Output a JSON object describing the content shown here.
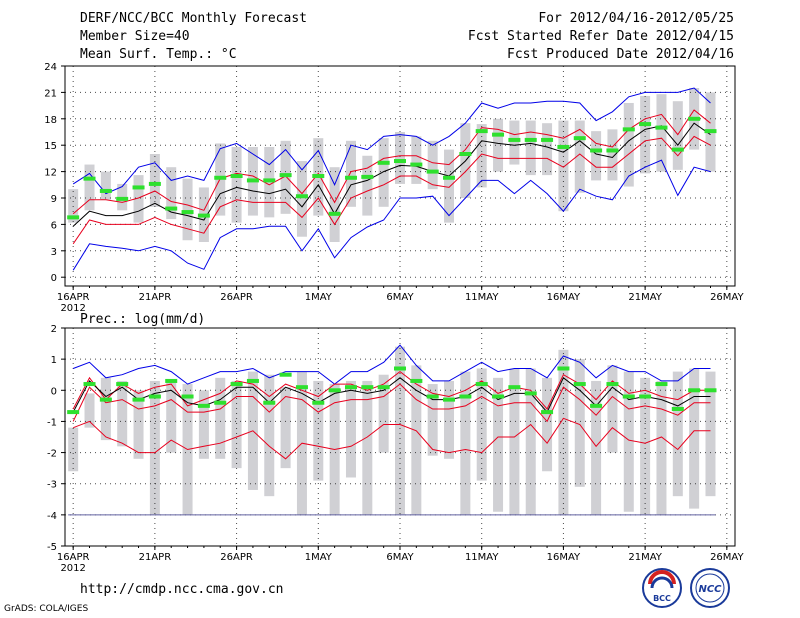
{
  "header": {
    "title": "DERF/NCC/BCC Monthly Forecast",
    "member_size": "Member Size=40",
    "variable": "Mean Surf. Temp.: °C",
    "forecast_period": "For 2012/04/16-2012/05/25",
    "started_date": "Fcst Started Refer Date 2012/04/15",
    "produced_date": "Fcst Produced Date 2012/04/16"
  },
  "footer": {
    "url": "http://cmdp.ncc.cma.gov.cn",
    "credit": "GrADS: COLA/IGES",
    "logo_bcc": "BCC",
    "logo_ncc": "NCC"
  },
  "colors": {
    "box": "#d0d0d4",
    "obs": "#2ee02e",
    "mean": "#000000",
    "inner": "#e8001e",
    "outer": "#0000e8",
    "grid": "#000000",
    "floor": "#6060a0"
  },
  "chart_data": [
    {
      "type": "line",
      "title": "Mean Surf. Temp.: °C",
      "xlabel": "",
      "ylabel": "",
      "x": [
        "16APR",
        "17APR",
        "18APR",
        "19APR",
        "20APR",
        "21APR",
        "22APR",
        "23APR",
        "24APR",
        "25APR",
        "26APR",
        "27APR",
        "28APR",
        "29APR",
        "30APR",
        "1MAY",
        "2MAY",
        "3MAY",
        "4MAY",
        "5MAY",
        "6MAY",
        "7MAY",
        "8MAY",
        "9MAY",
        "10MAY",
        "11MAY",
        "12MAY",
        "13MAY",
        "14MAY",
        "15MAY",
        "16MAY",
        "17MAY",
        "18MAY",
        "19MAY",
        "20MAY",
        "21MAY",
        "22MAY",
        "23MAY",
        "24MAY",
        "25MAY"
      ],
      "x_tick_labels": [
        "16APR",
        "21APR",
        "26APR",
        "1MAY",
        "6MAY",
        "11MAY",
        "16MAY",
        "21MAY",
        "26MAY"
      ],
      "x_year_label": "2012",
      "ylim": [
        -1,
        24
      ],
      "yticks": [
        0,
        3,
        6,
        9,
        12,
        15,
        18,
        21,
        24
      ],
      "grid": true,
      "series": [
        {
          "name": "ensemble max",
          "values": [
            0.8,
            3.8,
            3.5,
            3.3,
            3.0,
            3.5,
            3.0,
            1.6,
            0.9,
            4.5,
            5.5,
            5.5,
            5.8,
            5.8,
            3.0,
            5.5,
            2.2,
            4.5,
            5.7,
            6.5,
            9.0,
            9.0,
            9.2,
            7.0,
            9.0,
            11.0,
            11.0,
            9.5,
            11.0,
            9.5,
            7.5,
            10.0,
            9.2,
            8.8,
            11.5,
            12.5,
            13.3,
            9.3,
            12.5,
            12.0
          ]
        },
        {
          "name": "upper envelope",
          "values": [
            10.6,
            11.8,
            9.5,
            10.3,
            12.5,
            13.0,
            11.0,
            11.5,
            11.0,
            14.6,
            15.2,
            14.0,
            12.8,
            14.5,
            12.2,
            14.4,
            10.5,
            15.0,
            14.5,
            16.0,
            16.2,
            16.0,
            15.0,
            16.0,
            17.5,
            19.8,
            19.2,
            19.8,
            19.8,
            20.0,
            20.0,
            19.8,
            17.8,
            18.8,
            20.5,
            21.0,
            21.0,
            21.0,
            21.5,
            19.8
          ]
        },
        {
          "name": "upper interval",
          "values": [
            7.2,
            8.8,
            8.8,
            8.5,
            9.0,
            9.8,
            8.6,
            8.2,
            7.6,
            11.2,
            11.8,
            11.5,
            10.5,
            11.5,
            9.5,
            11.8,
            8.5,
            12.0,
            12.4,
            13.5,
            13.8,
            13.8,
            13.0,
            12.8,
            14.5,
            17.0,
            16.8,
            16.2,
            16.5,
            16.2,
            15.8,
            16.8,
            15.2,
            14.8,
            16.8,
            18.0,
            18.5,
            16.2,
            19.0,
            17.5
          ]
        },
        {
          "name": "ensemble mean",
          "values": [
            5.8,
            7.5,
            7.0,
            7.0,
            7.5,
            8.4,
            7.4,
            7.0,
            6.5,
            9.5,
            10.2,
            9.8,
            9.5,
            10.0,
            8.0,
            10.5,
            7.2,
            10.5,
            11.0,
            12.0,
            12.7,
            12.6,
            12.0,
            11.5,
            13.2,
            15.5,
            15.2,
            15.0,
            15.2,
            14.8,
            14.2,
            15.5,
            14.0,
            13.6,
            15.5,
            16.8,
            17.2,
            15.0,
            17.5,
            16.2
          ]
        },
        {
          "name": "lower interval",
          "values": [
            3.8,
            6.5,
            6.0,
            6.0,
            6.0,
            6.8,
            6.0,
            5.5,
            5.0,
            8.0,
            8.8,
            8.5,
            8.5,
            8.5,
            6.8,
            9.0,
            6.0,
            9.0,
            9.8,
            10.5,
            11.5,
            11.5,
            10.5,
            10.2,
            12.0,
            14.0,
            13.5,
            13.5,
            13.5,
            13.5,
            12.5,
            14.0,
            12.5,
            12.5,
            14.0,
            15.5,
            15.8,
            13.8,
            16.0,
            15.0
          ]
        },
        {
          "name": "observed",
          "values": [
            6.8,
            11.2,
            9.8,
            8.9,
            10.2,
            10.6,
            7.8,
            7.4,
            7.0,
            11.3,
            11.5,
            11.0,
            11.0,
            11.6,
            9.2,
            11.5,
            7.2,
            11.3,
            11.4,
            13.0,
            13.2,
            12.8,
            12.0,
            11.3,
            14.0,
            16.6,
            16.2,
            15.6,
            15.6,
            15.6,
            14.8,
            15.8,
            14.4,
            14.4,
            16.8,
            17.4,
            17.0,
            14.5,
            18.0,
            16.6
          ]
        }
      ],
      "box_ranges": [
        [
          6.2,
          10.0
        ],
        [
          7.6,
          12.8
        ],
        [
          8.8,
          12.0
        ],
        [
          7.6,
          10.6
        ],
        [
          6.2,
          11.6
        ],
        [
          8.0,
          14.0
        ],
        [
          6.6,
          12.5
        ],
        [
          4.2,
          11.2
        ],
        [
          4.0,
          10.2
        ],
        [
          7.0,
          15.2
        ],
        [
          6.2,
          14.8
        ],
        [
          7.0,
          14.8
        ],
        [
          6.8,
          14.8
        ],
        [
          7.2,
          15.5
        ],
        [
          4.6,
          13.2
        ],
        [
          7.0,
          15.8
        ],
        [
          4.0,
          12.5
        ],
        [
          8.0,
          15.5
        ],
        [
          7.0,
          13.8
        ],
        [
          8.0,
          15.8
        ],
        [
          10.6,
          16.5
        ],
        [
          10.6,
          16.0
        ],
        [
          10.0,
          15.5
        ],
        [
          6.2,
          14.5
        ],
        [
          9.0,
          17.5
        ],
        [
          10.2,
          17.4
        ],
        [
          12.0,
          18.0
        ],
        [
          12.8,
          17.8
        ],
        [
          11.6,
          17.8
        ],
        [
          11.6,
          17.5
        ],
        [
          7.5,
          17.8
        ],
        [
          9.6,
          17.8
        ],
        [
          11.0,
          16.6
        ],
        [
          11.0,
          16.8
        ],
        [
          10.3,
          19.8
        ],
        [
          11.8,
          20.6
        ],
        [
          12.0,
          20.8
        ],
        [
          12.2,
          20.0
        ],
        [
          14.5,
          21.5
        ],
        [
          12.0,
          21.0
        ]
      ]
    },
    {
      "type": "line",
      "title": "Prec.: log(mm/d)",
      "xlabel": "",
      "ylabel": "",
      "x": [
        "16APR",
        "17APR",
        "18APR",
        "19APR",
        "20APR",
        "21APR",
        "22APR",
        "23APR",
        "24APR",
        "25APR",
        "26APR",
        "27APR",
        "28APR",
        "29APR",
        "30APR",
        "1MAY",
        "2MAY",
        "3MAY",
        "4MAY",
        "5MAY",
        "6MAY",
        "7MAY",
        "8MAY",
        "9MAY",
        "10MAY",
        "11MAY",
        "12MAY",
        "13MAY",
        "14MAY",
        "15MAY",
        "16MAY",
        "17MAY",
        "18MAY",
        "19MAY",
        "20MAY",
        "21MAY",
        "22MAY",
        "23MAY",
        "24MAY",
        "25MAY"
      ],
      "x_tick_labels": [
        "16APR",
        "21APR",
        "26APR",
        "1MAY",
        "6MAY",
        "11MAY",
        "16MAY",
        "21MAY",
        "26MAY"
      ],
      "x_year_label": "2012",
      "ylim": [
        -5,
        2
      ],
      "yticks": [
        -5,
        -4,
        -3,
        -2,
        -1,
        0,
        1,
        2
      ],
      "grid": true,
      "floor_line": -4,
      "series": [
        {
          "name": "upper envelope",
          "values": [
            0.7,
            0.9,
            0.4,
            0.5,
            0.7,
            0.8,
            0.6,
            0.2,
            0.4,
            0.6,
            0.6,
            0.7,
            0.4,
            0.6,
            0.6,
            0.6,
            0.2,
            0.6,
            0.6,
            0.9,
            1.45,
            0.8,
            0.3,
            0.3,
            0.6,
            0.9,
            0.6,
            0.7,
            0.7,
            0.4,
            1.1,
            0.9,
            0.4,
            0.8,
            0.6,
            0.6,
            0.3,
            0.3,
            0.7,
            0.7
          ]
        },
        {
          "name": "upper interval",
          "values": [
            -0.6,
            0.4,
            -0.3,
            0.2,
            -0.1,
            0.1,
            0.2,
            -0.5,
            -0.3,
            -0.1,
            0.3,
            0.2,
            -0.2,
            0.2,
            0.0,
            -0.2,
            0.2,
            0.2,
            0.0,
            0.2,
            0.6,
            0.2,
            -0.1,
            -0.2,
            0.0,
            0.3,
            -0.1,
            0.1,
            0.0,
            -0.6,
            0.5,
            0.2,
            -0.3,
            0.3,
            -0.1,
            0.0,
            -0.2,
            -0.3,
            0.0,
            0.0
          ]
        },
        {
          "name": "ensemble mean",
          "values": [
            -0.7,
            0.3,
            -0.2,
            0.1,
            -0.3,
            -0.1,
            0.0,
            -0.4,
            -0.5,
            -0.3,
            0.1,
            0.1,
            -0.4,
            0.1,
            -0.1,
            -0.4,
            -0.1,
            0.0,
            -0.1,
            0.0,
            0.4,
            0.0,
            -0.3,
            -0.3,
            -0.2,
            0.1,
            -0.3,
            -0.1,
            -0.1,
            -0.7,
            0.4,
            0.0,
            -0.5,
            0.1,
            -0.3,
            -0.2,
            -0.3,
            -0.5,
            -0.2,
            -0.2
          ]
        },
        {
          "name": "lower interval",
          "values": [
            -1.0,
            0.1,
            -0.4,
            -0.3,
            -0.6,
            -0.5,
            -0.3,
            -0.7,
            -0.7,
            -0.6,
            -0.2,
            -0.2,
            -0.7,
            -0.2,
            -0.3,
            -0.7,
            -0.4,
            -0.3,
            -0.3,
            -0.2,
            0.2,
            -0.3,
            -0.6,
            -0.6,
            -0.5,
            -0.2,
            -0.5,
            -0.4,
            -0.4,
            -1.0,
            0.1,
            -0.3,
            -0.8,
            -0.2,
            -0.6,
            -0.5,
            -0.6,
            -0.8,
            -0.4,
            -0.4
          ]
        },
        {
          "name": "lower envelope",
          "values": [
            -1.2,
            -1.0,
            -1.5,
            -1.7,
            -2.0,
            -2.0,
            -1.6,
            -1.9,
            -1.8,
            -1.7,
            -1.5,
            -1.3,
            -1.8,
            -2.2,
            -1.7,
            -1.8,
            -1.9,
            -1.8,
            -1.5,
            -1.1,
            -1.1,
            -1.3,
            -1.9,
            -2.0,
            -1.9,
            -2.0,
            -1.5,
            -1.5,
            -1.1,
            -1.7,
            -0.9,
            -1.1,
            -1.8,
            -1.2,
            -1.6,
            -1.7,
            -1.5,
            -1.9,
            -1.3,
            -1.3
          ]
        },
        {
          "name": "observed",
          "values": [
            -0.7,
            0.2,
            -0.3,
            0.2,
            -0.3,
            -0.2,
            0.3,
            -0.2,
            -0.5,
            -0.4,
            0.2,
            0.3,
            -0.4,
            0.5,
            0.1,
            -0.4,
            0.0,
            0.1,
            0.1,
            0.1,
            0.7,
            0.3,
            -0.2,
            -0.3,
            -0.2,
            0.2,
            -0.2,
            0.1,
            -0.1,
            -0.7,
            0.7,
            0.2,
            -0.5,
            0.2,
            -0.2,
            -0.2,
            0.2,
            -0.6,
            0.0,
            0.0
          ]
        }
      ],
      "box_ranges": [
        [
          -2.6,
          -1.2
        ],
        [
          -1.2,
          -0.1
        ],
        [
          -1.6,
          0.4
        ],
        [
          -1.8,
          0.3
        ],
        [
          -2.2,
          0.0
        ],
        [
          -4.0,
          0.3
        ],
        [
          -2.0,
          0.3
        ],
        [
          -4.0,
          0.2
        ],
        [
          -2.2,
          0.0
        ],
        [
          -2.2,
          0.4
        ],
        [
          -2.5,
          0.3
        ],
        [
          -3.2,
          0.6
        ],
        [
          -3.4,
          0.5
        ],
        [
          -2.5,
          0.1
        ],
        [
          -4.0,
          0.6
        ],
        [
          -2.9,
          0.3
        ],
        [
          -4.0,
          0.2
        ],
        [
          -2.8,
          0.3
        ],
        [
          -4.0,
          0.3
        ],
        [
          -2.0,
          0.5
        ],
        [
          -4.0,
          1.4
        ],
        [
          -4.0,
          0.8
        ],
        [
          -2.1,
          0.2
        ],
        [
          -2.2,
          0.3
        ],
        [
          -4.0,
          0.6
        ],
        [
          -2.9,
          0.7
        ],
        [
          -3.9,
          0.4
        ],
        [
          -4.0,
          0.7
        ],
        [
          -4.0,
          0.7
        ],
        [
          -2.6,
          0.4
        ],
        [
          -4.0,
          1.3
        ],
        [
          -3.1,
          1.0
        ],
        [
          -4.0,
          0.3
        ],
        [
          -2.0,
          0.8
        ],
        [
          -3.9,
          0.6
        ],
        [
          -4.0,
          0.4
        ],
        [
          -4.0,
          0.3
        ],
        [
          -3.4,
          0.6
        ],
        [
          -3.8,
          0.7
        ],
        [
          -3.4,
          0.6
        ]
      ]
    }
  ]
}
